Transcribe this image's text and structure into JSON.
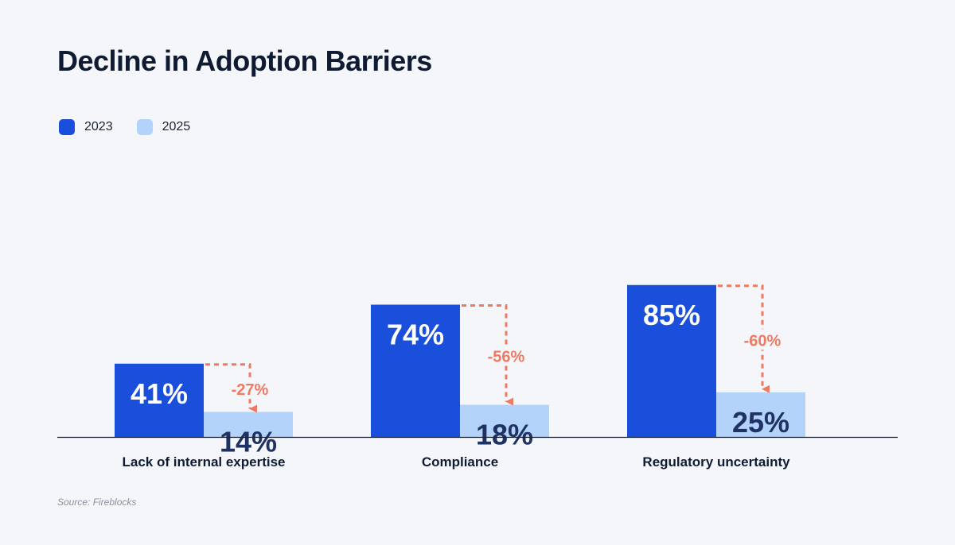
{
  "title": "Decline in Adoption Barriers",
  "source": "Source: Fireblocks",
  "colors": {
    "series_2023": "#1a4fdb",
    "series_2025": "#b3d3fb",
    "change": "#ee7a63",
    "axis": "#1a2236",
    "label_2023": "#ffffff",
    "label_2025": "#1e3263"
  },
  "legend": [
    {
      "label": "2023",
      "color": "#1a4fdb"
    },
    {
      "label": "2025",
      "color": "#b3d3fb"
    }
  ],
  "chart_data": {
    "type": "bar",
    "title": "Decline in Adoption Barriers",
    "categories": [
      "Lack of internal expertise",
      "Compliance",
      "Regulatory uncertainty"
    ],
    "series": [
      {
        "name": "2023",
        "values": [
          41,
          74,
          85
        ],
        "labels": [
          "41%",
          "74%",
          "85%"
        ]
      },
      {
        "name": "2025",
        "values": [
          14,
          18,
          25
        ],
        "labels": [
          "14%",
          "18%",
          "25%"
        ]
      }
    ],
    "changes": [
      "-27%",
      "-56%",
      "-60%"
    ],
    "unit": "%",
    "ylim": [
      0,
      100
    ],
    "grid": false,
    "legend_position": "top-left",
    "xlabel": "",
    "ylabel": ""
  }
}
